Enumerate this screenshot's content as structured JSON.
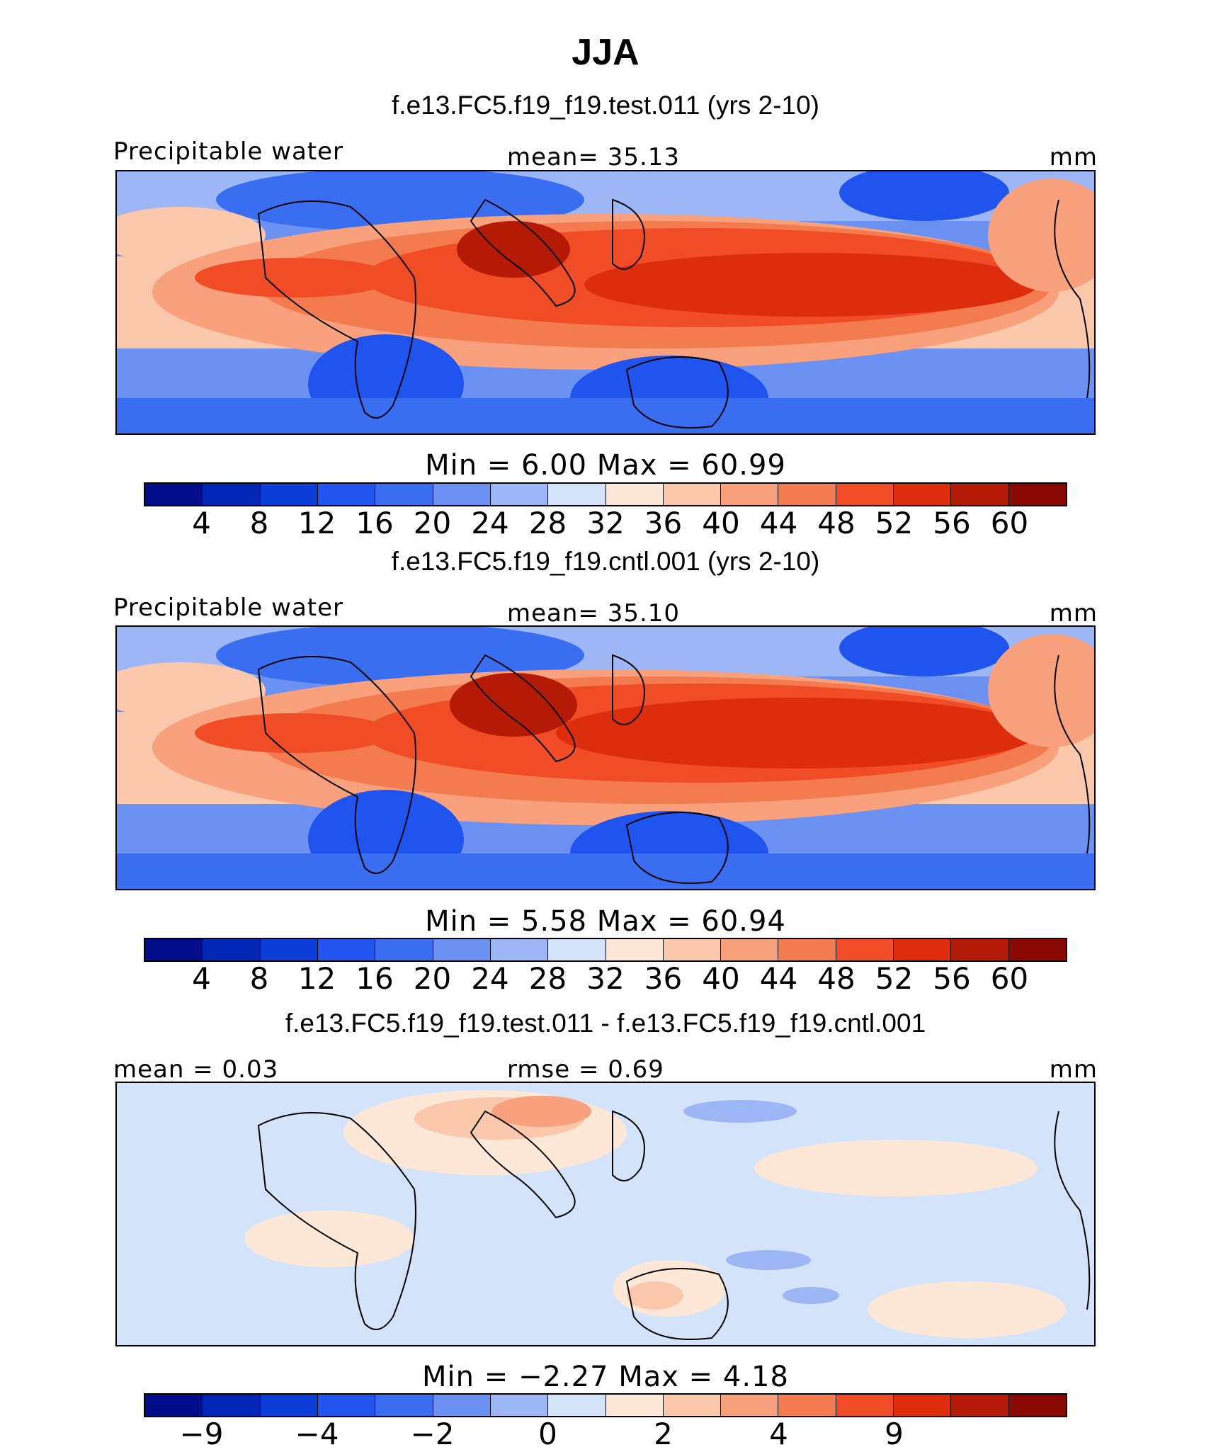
{
  "title": "JJA",
  "panels": [
    {
      "title": "f.e13.FC5.f19_f19.test.011 (yrs 2-10)",
      "left_label": "Precipitable water",
      "center_label": "mean=   35.13",
      "right_label": "mm",
      "minmax": "Min  =     6.00  Max  =   60.99",
      "colorbar_ticks": [
        "4",
        "8",
        "12",
        "16",
        "20",
        "24",
        "28",
        "32",
        "36",
        "40",
        "44",
        "48",
        "52",
        "56",
        "60"
      ],
      "colorbar_colors": [
        "#000d8a",
        "#0026b5",
        "#0a3ed6",
        "#1f55ee",
        "#3a6ef0",
        "#6b91f2",
        "#9db6f6",
        "#d3e3fa",
        "#fde8d8",
        "#fbc8ac",
        "#f8a17c",
        "#f47a4f",
        "#f04c25",
        "#dd2d0c",
        "#b41a05",
        "#8a0802"
      ]
    },
    {
      "title": "f.e13.FC5.f19_f19.cntl.001 (yrs 2-10)",
      "left_label": "Precipitable water",
      "center_label": "mean=   35.10",
      "right_label": "mm",
      "minmax": "Min  =     5.58  Max  =   60.94",
      "colorbar_ticks": [
        "4",
        "8",
        "12",
        "16",
        "20",
        "24",
        "28",
        "32",
        "36",
        "40",
        "44",
        "48",
        "52",
        "56",
        "60"
      ],
      "colorbar_colors": [
        "#000d8a",
        "#0026b5",
        "#0a3ed6",
        "#1f55ee",
        "#3a6ef0",
        "#6b91f2",
        "#9db6f6",
        "#d3e3fa",
        "#fde8d8",
        "#fbc8ac",
        "#f8a17c",
        "#f47a4f",
        "#f04c25",
        "#dd2d0c",
        "#b41a05",
        "#8a0802"
      ]
    },
    {
      "title": "f.e13.FC5.f19_f19.test.011 - f.e13.FC5.f19_f19.cntl.001",
      "left_label": "mean =    0.03",
      "center_label": "rmse =    0.69",
      "right_label": "mm",
      "minmax": "Min  =   −2.27  Max  =     4.18",
      "colorbar_ticks": [
        "−9",
        "−4",
        "−2",
        "0",
        "2",
        "4",
        "9"
      ],
      "colorbar_colors": [
        "#000d8a",
        "#0026b5",
        "#0a3ed6",
        "#1f55ee",
        "#3a6ef0",
        "#6b91f2",
        "#9db6f6",
        "#d3e3fa",
        "#fde8d8",
        "#fbc8ac",
        "#f8a17c",
        "#f47a4f",
        "#f04c25",
        "#dd2d0c",
        "#b41a05",
        "#8a0802"
      ]
    }
  ]
}
